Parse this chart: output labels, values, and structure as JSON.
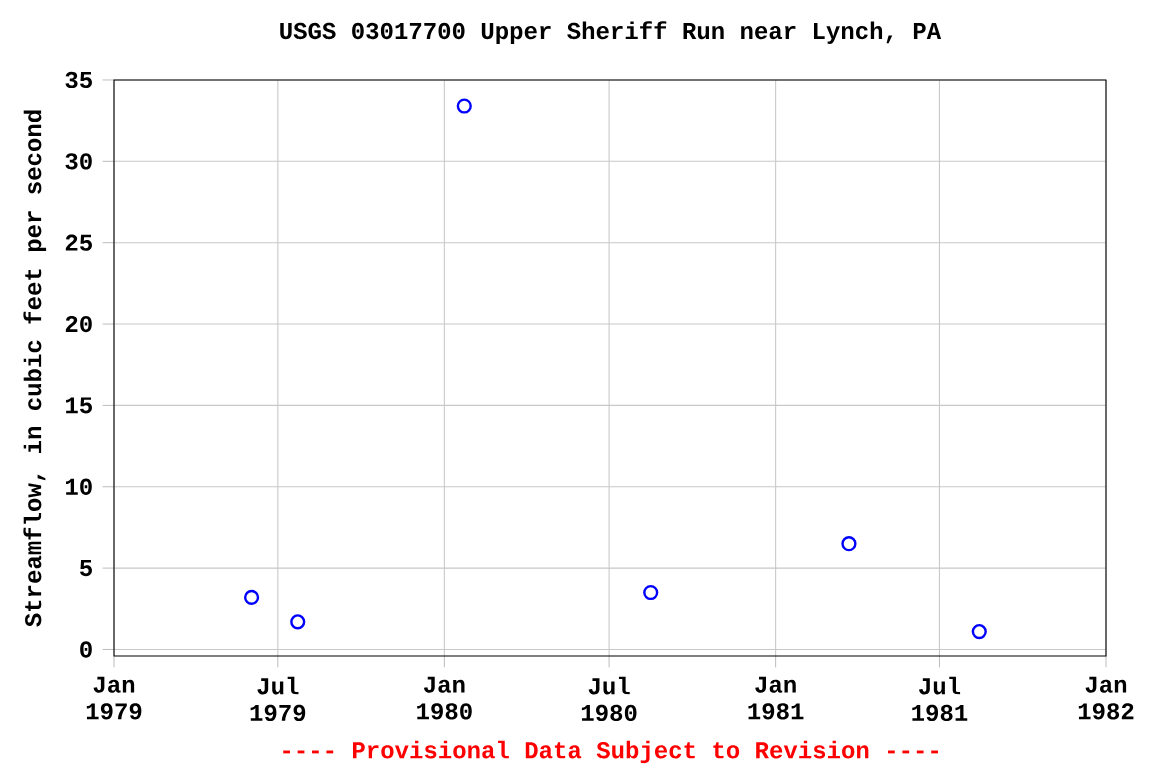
{
  "chart_data": {
    "type": "scatter",
    "title": "USGS 03017700 Upper Sheriff Run near Lynch, PA",
    "ylabel": "Streamflow, in cubic feet per second",
    "x": [
      "1979-06-02",
      "1979-07-23",
      "1980-01-23",
      "1980-08-16",
      "1981-03-23",
      "1981-08-14"
    ],
    "values": [
      3.2,
      1.7,
      33.4,
      3.5,
      6.5,
      1.1
    ],
    "color": "#0000ff",
    "marker": "circle",
    "xlim": [
      "1979-01-01",
      "1982-01-01"
    ],
    "xticks": [
      {
        "value": "1979-01-01",
        "label": "Jan 1979"
      },
      {
        "value": "1979-07-01",
        "label": "Jul 1979"
      },
      {
        "value": "1980-01-01",
        "label": "Jan 1980"
      },
      {
        "value": "1980-07-01",
        "label": "Jul 1980"
      },
      {
        "value": "1981-01-01",
        "label": "Jan 1981"
      },
      {
        "value": "1981-07-01",
        "label": "Jul 1981"
      },
      {
        "value": "1982-01-01",
        "label": "Jan 1982"
      }
    ],
    "ylim": [
      -0.4,
      35
    ],
    "yticks": [
      0,
      5,
      10,
      15,
      20,
      25,
      30,
      35
    ],
    "grid": true,
    "annotations": [
      "---- Provisional Data Subject to Revision ----"
    ]
  }
}
